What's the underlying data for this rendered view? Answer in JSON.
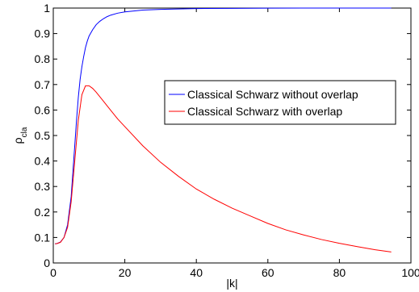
{
  "chart_data": {
    "type": "line",
    "title": "",
    "xlabel": "|k|",
    "ylabel_main": "ρ",
    "ylabel_sub": "cla",
    "xlim": [
      0,
      100
    ],
    "ylim": [
      0,
      1
    ],
    "xticks": [
      0,
      20,
      40,
      60,
      80,
      100
    ],
    "yticks": [
      0,
      0.1,
      0.2,
      0.3,
      0.4,
      0.5,
      0.6,
      0.7,
      0.8,
      0.9,
      1
    ],
    "xtick_labels": [
      "0",
      "20",
      "40",
      "60",
      "80",
      "100"
    ],
    "ytick_labels": [
      "0",
      "0.1",
      "0.2",
      "0.3",
      "0.4",
      "0.5",
      "0.6",
      "0.7",
      "0.8",
      "0.9",
      "1"
    ],
    "grid": false,
    "legend_position": "right-upper",
    "series": [
      {
        "name": "Classical Schwarz without overlap",
        "color": "#0000ff",
        "x": [
          0.5,
          1,
          2,
          3,
          4,
          5,
          6,
          6.5,
          7,
          7.5,
          8,
          8.5,
          9,
          9.5,
          10,
          11,
          12,
          13,
          14,
          15,
          16,
          18,
          20,
          25,
          30,
          40,
          50,
          60,
          70,
          80,
          94.5
        ],
        "y": [
          0.075,
          0.076,
          0.082,
          0.1,
          0.15,
          0.26,
          0.46,
          0.56,
          0.65,
          0.72,
          0.77,
          0.81,
          0.845,
          0.87,
          0.89,
          0.915,
          0.935,
          0.948,
          0.958,
          0.966,
          0.972,
          0.98,
          0.985,
          0.992,
          0.995,
          0.998,
          0.999,
          0.9995,
          0.9998,
          0.9999,
          1.0
        ]
      },
      {
        "name": "Classical Schwarz with overlap",
        "color": "#ff0000",
        "x": [
          0.5,
          1,
          2,
          3,
          4,
          5,
          6,
          7,
          8,
          9,
          10,
          11,
          12,
          14,
          16,
          18,
          20,
          25,
          30,
          35,
          40,
          45,
          50,
          55,
          60,
          65,
          70,
          75,
          80,
          85,
          90,
          94.5
        ],
        "y": [
          0.075,
          0.076,
          0.081,
          0.1,
          0.14,
          0.24,
          0.4,
          0.56,
          0.66,
          0.695,
          0.695,
          0.685,
          0.67,
          0.635,
          0.6,
          0.565,
          0.535,
          0.46,
          0.395,
          0.34,
          0.29,
          0.25,
          0.215,
          0.185,
          0.155,
          0.13,
          0.11,
          0.092,
          0.077,
          0.064,
          0.052,
          0.043
        ]
      }
    ]
  }
}
